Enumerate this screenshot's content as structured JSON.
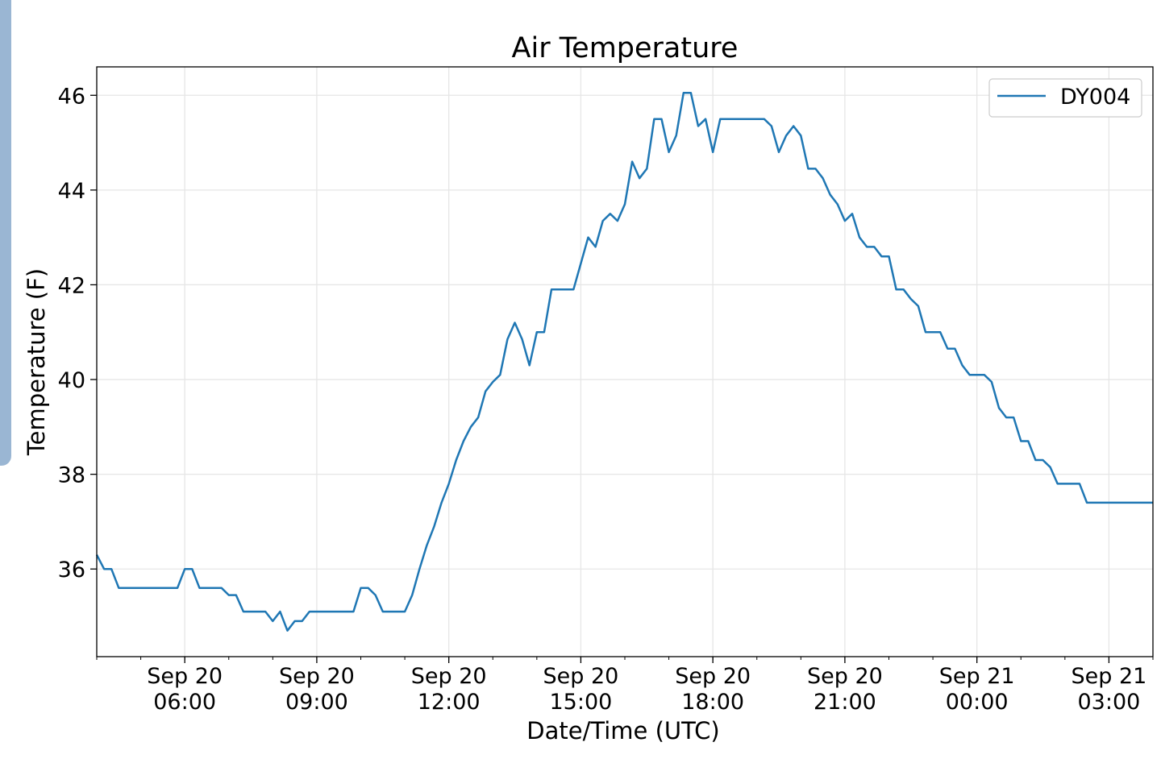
{
  "chart_data": {
    "type": "line",
    "title": "Air Temperature",
    "xlabel": "Date/Time (UTC)",
    "ylabel": "Temperature (F)",
    "xlim": [
      "Sep 20 04:00",
      "Sep 21 04:00"
    ],
    "ylim": [
      34.15,
      46.6
    ],
    "grid": true,
    "legend_position": "top-right",
    "x_ticks": [
      {
        "time": "Sep 20 06:00",
        "line1": "Sep 20",
        "line2": "06:00"
      },
      {
        "time": "Sep 20 09:00",
        "line1": "Sep 20",
        "line2": "09:00"
      },
      {
        "time": "Sep 20 12:00",
        "line1": "Sep 20",
        "line2": "12:00"
      },
      {
        "time": "Sep 20 15:00",
        "line1": "Sep 20",
        "line2": "15:00"
      },
      {
        "time": "Sep 20 18:00",
        "line1": "Sep 20",
        "line2": "18:00"
      },
      {
        "time": "Sep 20 21:00",
        "line1": "Sep 20",
        "line2": "21:00"
      },
      {
        "time": "Sep 21 00:00",
        "line1": "Sep 21",
        "line2": "00:00"
      },
      {
        "time": "Sep 21 03:00",
        "line1": "Sep 21",
        "line2": "03:00"
      }
    ],
    "y_ticks": [
      "36",
      "38",
      "40",
      "42",
      "44",
      "46"
    ],
    "series": [
      {
        "name": "DY004",
        "color": "#1f77b4",
        "points": [
          [
            "Sep 20 04:00",
            36.3
          ],
          [
            "Sep 20 04:10",
            36.0
          ],
          [
            "Sep 20 04:20",
            36.0
          ],
          [
            "Sep 20 04:30",
            35.6
          ],
          [
            "Sep 20 05:50",
            35.6
          ],
          [
            "Sep 20 06:00",
            36.0
          ],
          [
            "Sep 20 06:10",
            36.0
          ],
          [
            "Sep 20 06:20",
            35.6
          ],
          [
            "Sep 20 06:50",
            35.6
          ],
          [
            "Sep 20 07:00",
            35.45
          ],
          [
            "Sep 20 07:10",
            35.45
          ],
          [
            "Sep 20 07:20",
            35.1
          ],
          [
            "Sep 20 07:50",
            35.1
          ],
          [
            "Sep 20 08:00",
            34.9
          ],
          [
            "Sep 20 08:10",
            35.1
          ],
          [
            "Sep 20 08:20",
            34.7
          ],
          [
            "Sep 20 08:30",
            34.9
          ],
          [
            "Sep 20 08:40",
            34.9
          ],
          [
            "Sep 20 08:50",
            35.1
          ],
          [
            "Sep 20 09:50",
            35.1
          ],
          [
            "Sep 20 10:00",
            35.6
          ],
          [
            "Sep 20 10:10",
            35.6
          ],
          [
            "Sep 20 10:20",
            35.45
          ],
          [
            "Sep 20 10:30",
            35.1
          ],
          [
            "Sep 20 11:00",
            35.1
          ],
          [
            "Sep 20 11:10",
            35.45
          ],
          [
            "Sep 20 11:20",
            36.0
          ],
          [
            "Sep 20 11:30",
            36.5
          ],
          [
            "Sep 20 11:40",
            36.9
          ],
          [
            "Sep 20 11:50",
            37.4
          ],
          [
            "Sep 20 12:00",
            37.8
          ],
          [
            "Sep 20 12:10",
            38.3
          ],
          [
            "Sep 20 12:20",
            38.7
          ],
          [
            "Sep 20 12:30",
            39.0
          ],
          [
            "Sep 20 12:40",
            39.2
          ],
          [
            "Sep 20 12:50",
            39.75
          ],
          [
            "Sep 20 13:00",
            39.95
          ],
          [
            "Sep 20 13:10",
            40.1
          ],
          [
            "Sep 20 13:20",
            40.85
          ],
          [
            "Sep 20 13:30",
            41.2
          ],
          [
            "Sep 20 13:40",
            40.85
          ],
          [
            "Sep 20 13:50",
            40.3
          ],
          [
            "Sep 20 14:00",
            41.0
          ],
          [
            "Sep 20 14:10",
            41.0
          ],
          [
            "Sep 20 14:20",
            41.9
          ],
          [
            "Sep 20 14:50",
            41.9
          ],
          [
            "Sep 20 15:00",
            42.45
          ],
          [
            "Sep 20 15:10",
            43.0
          ],
          [
            "Sep 20 15:20",
            42.8
          ],
          [
            "Sep 20 15:30",
            43.35
          ],
          [
            "Sep 20 15:40",
            43.5
          ],
          [
            "Sep 20 15:50",
            43.35
          ],
          [
            "Sep 20 16:00",
            43.7
          ],
          [
            "Sep 20 16:10",
            44.6
          ],
          [
            "Sep 20 16:20",
            44.25
          ],
          [
            "Sep 20 16:30",
            44.45
          ],
          [
            "Sep 20 16:40",
            45.5
          ],
          [
            "Sep 20 16:50",
            45.5
          ],
          [
            "Sep 20 17:00",
            44.8
          ],
          [
            "Sep 20 17:10",
            45.15
          ],
          [
            "Sep 20 17:20",
            46.05
          ],
          [
            "Sep 20 17:30",
            46.05
          ],
          [
            "Sep 20 17:40",
            45.35
          ],
          [
            "Sep 20 17:50",
            45.5
          ],
          [
            "Sep 20 18:00",
            44.8
          ],
          [
            "Sep 20 18:10",
            45.5
          ],
          [
            "Sep 20 19:10",
            45.5
          ],
          [
            "Sep 20 19:20",
            45.35
          ],
          [
            "Sep 20 19:30",
            44.8
          ],
          [
            "Sep 20 19:40",
            45.15
          ],
          [
            "Sep 20 19:50",
            45.35
          ],
          [
            "Sep 20 20:00",
            45.15
          ],
          [
            "Sep 20 20:10",
            44.45
          ],
          [
            "Sep 20 20:20",
            44.45
          ],
          [
            "Sep 20 20:30",
            44.25
          ],
          [
            "Sep 20 20:40",
            43.9
          ],
          [
            "Sep 20 20:50",
            43.7
          ],
          [
            "Sep 20 21:00",
            43.35
          ],
          [
            "Sep 20 21:10",
            43.5
          ],
          [
            "Sep 20 21:20",
            43.0
          ],
          [
            "Sep 20 21:30",
            42.8
          ],
          [
            "Sep 20 21:40",
            42.8
          ],
          [
            "Sep 20 21:50",
            42.6
          ],
          [
            "Sep 20 22:00",
            42.6
          ],
          [
            "Sep 20 22:10",
            41.9
          ],
          [
            "Sep 20 22:20",
            41.9
          ],
          [
            "Sep 20 22:30",
            41.7
          ],
          [
            "Sep 20 22:40",
            41.55
          ],
          [
            "Sep 20 22:50",
            41.0
          ],
          [
            "Sep 20 23:10",
            41.0
          ],
          [
            "Sep 20 23:20",
            40.65
          ],
          [
            "Sep 20 23:30",
            40.65
          ],
          [
            "Sep 20 23:40",
            40.3
          ],
          [
            "Sep 20 23:50",
            40.1
          ],
          [
            "Sep 21 00:10",
            40.1
          ],
          [
            "Sep 21 00:20",
            39.95
          ],
          [
            "Sep 21 00:30",
            39.4
          ],
          [
            "Sep 21 00:40",
            39.2
          ],
          [
            "Sep 21 00:50",
            39.2
          ],
          [
            "Sep 21 01:00",
            38.7
          ],
          [
            "Sep 21 01:10",
            38.7
          ],
          [
            "Sep 21 01:20",
            38.3
          ],
          [
            "Sep 21 01:30",
            38.3
          ],
          [
            "Sep 21 01:40",
            38.15
          ],
          [
            "Sep 21 01:50",
            37.8
          ],
          [
            "Sep 21 02:20",
            37.8
          ],
          [
            "Sep 21 02:30",
            37.4
          ],
          [
            "Sep 21 04:00",
            37.4
          ]
        ]
      }
    ]
  }
}
